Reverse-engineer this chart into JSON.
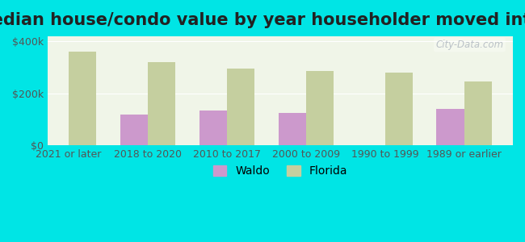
{
  "title": "Median house/condo value by year householder moved into unit",
  "categories": [
    "2021 or later",
    "2018 to 2020",
    "2010 to 2017",
    "2000 to 2009",
    "1990 to 1999",
    "1989 or earlier"
  ],
  "waldo_values": [
    null,
    120000,
    135000,
    125000,
    null,
    140000
  ],
  "florida_values": [
    360000,
    320000,
    295000,
    285000,
    280000,
    245000
  ],
  "waldo_color": "#cc99cc",
  "florida_color": "#c5cf9f",
  "background_outer": "#00e5e5",
  "background_inner": "#f0f5e8",
  "ylabel_ticks": [
    "$0",
    "$200k",
    "$400k"
  ],
  "ytick_values": [
    0,
    200000,
    400000
  ],
  "ylim": [
    0,
    420000
  ],
  "legend_waldo": "Waldo",
  "legend_florida": "Florida",
  "watermark": "City-Data.com",
  "bar_width": 0.35,
  "title_fontsize": 15,
  "tick_fontsize": 9,
  "legend_fontsize": 10
}
